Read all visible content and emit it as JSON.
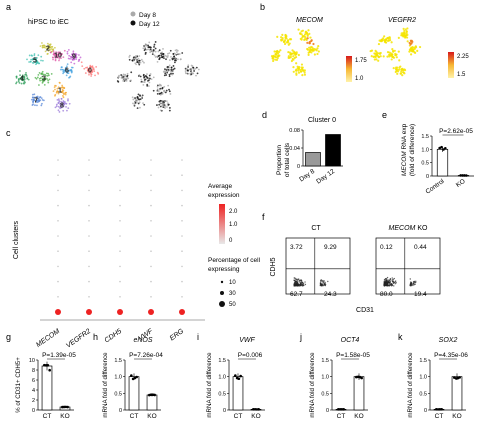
{
  "panel_letters": [
    "a",
    "b",
    "c",
    "d",
    "e",
    "f",
    "g",
    "h",
    "i",
    "j",
    "k"
  ],
  "a": {
    "title": "hiPSC to iEC",
    "legend": [
      {
        "label": "Day 8",
        "color": "#aaaaaa"
      },
      {
        "label": "Day 12",
        "color": "#111111"
      }
    ],
    "cluster_labels": [
      {
        "label": "0",
        "color": "#ff7777"
      },
      {
        "label": "1",
        "color": "#f4a72e"
      },
      {
        "label": "2",
        "color": "#c8c43a"
      },
      {
        "label": "3",
        "color": "#4db04a"
      },
      {
        "label": "4",
        "color": "#2e9e5a"
      },
      {
        "label": "5",
        "color": "#3fc0b0"
      },
      {
        "label": "6",
        "color": "#4aa4e0"
      },
      {
        "label": "7",
        "color": "#5a88d8"
      },
      {
        "label": "8",
        "color": "#9a7ad8"
      },
      {
        "label": "9",
        "color": "#c25ad0"
      },
      {
        "label": "10",
        "color": "#e05aa8"
      }
    ]
  },
  "b": {
    "genes": [
      {
        "name": "MECOM",
        "scale_max": "1.75",
        "scale_min": "1.0"
      },
      {
        "name": "VEGFR2",
        "scale_max": "2.25",
        "scale_min": "1.5"
      }
    ]
  },
  "c": {
    "ylabel": "Cell clusters",
    "genes": [
      "MECOM",
      "VEGFR2",
      "CDH5",
      "VWF",
      "ERG"
    ],
    "legend_avg_title_1": "Average",
    "legend_avg_title_2": "expression",
    "avg_ticks": [
      "2.0",
      "1.0",
      "0"
    ],
    "legend_pct_title_1": "Percentage of cell",
    "legend_pct_title_2": "expressing",
    "pct_ticks": [
      "10",
      "30",
      "50"
    ]
  },
  "d": {
    "title": "Cluster 0",
    "ylabel_1": "Proportion",
    "ylabel_2": "of total cells",
    "yticks": [
      "0",
      "0.04",
      "0.08"
    ],
    "chart_data": {
      "type": "bar",
      "categories": [
        "Day 8",
        "Day 12"
      ],
      "values": [
        0.03,
        0.07
      ],
      "ylim": [
        0,
        0.08
      ],
      "colors": [
        "#999999",
        "#000000"
      ]
    }
  },
  "e": {
    "ylabel_gene": "MECOM",
    "ylabel_rest": " RNA exp",
    "ylabel_2": "(fold of difference)",
    "pvalue": "P=2.62e-05",
    "yticks": [
      "0",
      "0.5",
      "1.0",
      "1.5"
    ],
    "chart_data": {
      "type": "bar",
      "categories": [
        "Control",
        "KO"
      ],
      "values": [
        1.0,
        0.02
      ],
      "ylim": [
        0,
        1.5
      ]
    }
  },
  "f": {
    "ct_label": "CT",
    "ko_gene": "MECOM",
    "ko_rest": " KO",
    "ylabel": "CDH5",
    "xlabel": "CD31",
    "ct_quadrants": {
      "ul": "3.72",
      "ur": "9.29",
      "ll": "62.7",
      "lr": "24.3"
    },
    "ko_quadrants": {
      "ul": "0.12",
      "ur": "0.44",
      "ll": "80.0",
      "lr": "19.4"
    }
  },
  "bottom_panels": [
    {
      "letter": "g",
      "title": "",
      "ylabel": "% of CD31+ CDH5+",
      "pvalue": "P=1.39e-05",
      "yticks": [
        "0",
        "2",
        "4",
        "6",
        "8",
        "10"
      ],
      "chart_data": {
        "type": "bar",
        "categories": [
          "CT",
          "KO"
        ],
        "values": [
          8.8,
          0.6
        ],
        "ylim": [
          0,
          10
        ]
      }
    },
    {
      "letter": "h",
      "title": "eNOS",
      "ylabel": "mRNA fold of difference",
      "pvalue": "P=7.26e-04",
      "yticks": [
        "0",
        "0.5",
        "1.0",
        "1.5"
      ],
      "chart_data": {
        "type": "bar",
        "categories": [
          "CT",
          "KO"
        ],
        "values": [
          1.0,
          0.45
        ],
        "ylim": [
          0,
          1.5
        ]
      }
    },
    {
      "letter": "i",
      "title": "VWF",
      "ylabel": "mRNA fold of difference",
      "pvalue": "P=0.006",
      "yticks": [
        "0",
        "0.5",
        "1.0",
        "1.5"
      ],
      "chart_data": {
        "type": "bar",
        "categories": [
          "CT",
          "KO"
        ],
        "values": [
          1.0,
          0.02
        ],
        "ylim": [
          0,
          1.5
        ]
      }
    },
    {
      "letter": "j",
      "title": "OCT4",
      "ylabel": "mRNA fold of difference",
      "pvalue": "P=1.58e-05",
      "yticks": [
        "0",
        "0.5",
        "1.0",
        "1.5"
      ],
      "chart_data": {
        "type": "bar",
        "categories": [
          "CT",
          "KO"
        ],
        "values": [
          0.02,
          1.0
        ],
        "ylim": [
          0,
          1.5
        ]
      }
    },
    {
      "letter": "k",
      "title": "SOX2",
      "ylabel": "mRNA fold of difference",
      "pvalue": "P=4.35e-06",
      "yticks": [
        "0",
        "0.5",
        "1.0",
        "1.5"
      ],
      "chart_data": {
        "type": "bar",
        "categories": [
          "CT",
          "KO"
        ],
        "values": [
          0.02,
          1.0
        ],
        "ylim": [
          0,
          1.5
        ]
      }
    }
  ]
}
